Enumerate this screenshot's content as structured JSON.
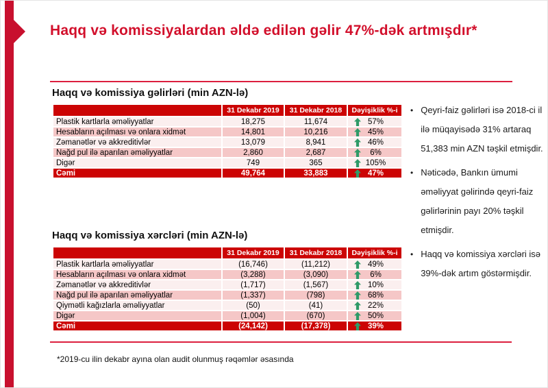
{
  "slide": {
    "title": "Haqq və komissiyalardan əldə edilən gəlir 47%-dək artmışdır*",
    "footnote": "*2019-cu ilin dekabr ayına olan audit olunmuş rəqəmlər əsasında"
  },
  "colors": {
    "accent_red": "#C8102E",
    "title_red": "#D20F2B",
    "line_red": "#DC1E3E",
    "table_header_red": "#CC0404",
    "row_pink": "#F5C7C7",
    "row_light": "#FBEFEF",
    "arrow_green": "#2F9A68"
  },
  "tables": [
    {
      "title": "Haqq və komissiya gəlirləri (min AZN-lə)",
      "columns": [
        "",
        "31 Dekabr 2019",
        "31 Dekabr 2018",
        "Dəyişiklik %-i"
      ],
      "rows": [
        {
          "label": "Plastik kartlarla əməliyyatlar",
          "v2019": "18,275",
          "v2018": "11,674",
          "change": "57%",
          "direction": "up"
        },
        {
          "label": "Hesabların açılması və onlara xidmət",
          "v2019": "14,801",
          "v2018": "10,216",
          "change": "45%",
          "direction": "up"
        },
        {
          "label": "Zəmanətlər və akkreditivlər",
          "v2019": "13,079",
          "v2018": "8,941",
          "change": "46%",
          "direction": "up"
        },
        {
          "label": "Nağd pul ilə aparılan əməliyyatlar",
          "v2019": "2,860",
          "v2018": "2,687",
          "change": "6%",
          "direction": "up"
        },
        {
          "label": "Digər",
          "v2019": "749",
          "v2018": "365",
          "change": "105%",
          "direction": "up"
        }
      ],
      "total": {
        "label": "Cəmi",
        "v2019": "49,764",
        "v2018": "33,883",
        "change": "47%",
        "direction": "up"
      }
    },
    {
      "title": "Haqq və komissiya xərcləri (min AZN-lə)",
      "columns": [
        "",
        "31 Dekabr 2019",
        "31 Dekabr 2018",
        "Dəyişiklik %-i"
      ],
      "rows": [
        {
          "label": "Plastik kartlarla əməliyyatlar",
          "v2019": "(16,746)",
          "v2018": "(11,212)",
          "change": "49%",
          "direction": "up"
        },
        {
          "label": "Hesabların açılması və onlara xidmət",
          "v2019": "(3,288)",
          "v2018": "(3,090)",
          "change": "6%",
          "direction": "up"
        },
        {
          "label": "Zəmanətlər və akkreditivlər",
          "v2019": "(1,717)",
          "v2018": "(1,567)",
          "change": "10%",
          "direction": "up"
        },
        {
          "label": "Nağd pul ilə aparılan əməliyyatlar",
          "v2019": "(1,337)",
          "v2018": "(798)",
          "change": "68%",
          "direction": "up"
        },
        {
          "label": "Qiymətli kağızlarla əməliyyatlar",
          "v2019": "(50)",
          "v2018": "(41)",
          "change": "22%",
          "direction": "up"
        },
        {
          "label": "Digər",
          "v2019": "(1,004)",
          "v2018": "(670)",
          "change": "50%",
          "direction": "up"
        }
      ],
      "total": {
        "label": "Cəmi",
        "v2019": "(24,142)",
        "v2018": "(17,378)",
        "change": "39%",
        "direction": "up"
      }
    }
  ],
  "bullets": [
    "Qeyri-faiz gəlirləri isə 2018-ci il ilə müqayisədə 31% artaraq 51,383 min AZN təşkil etmişdir.",
    "Nəticədə, Bankın ümumi əməliyyat gəlirində qeyri-faiz gəlirlərinin payı 20% təşkil etmişdir.",
    "Haqq və komissiya xərcləri isə 39%-dək artım göstərmişdir."
  ]
}
